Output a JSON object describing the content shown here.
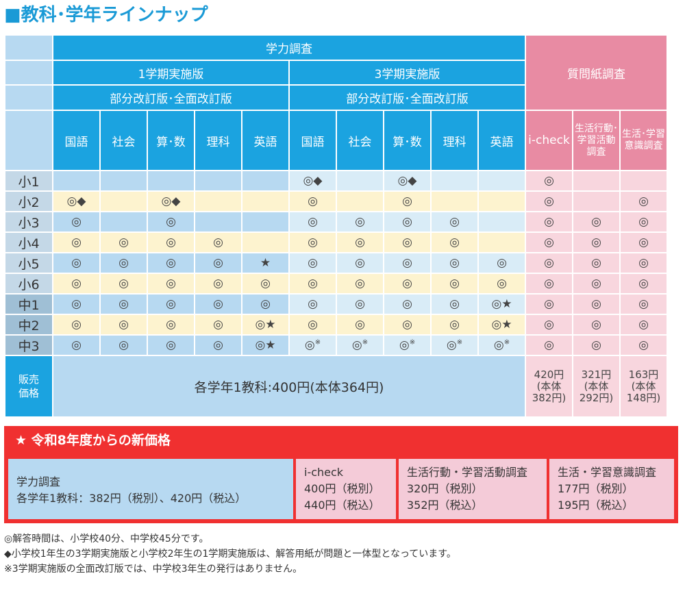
{
  "title": "■教科･学年ラインナップ",
  "header": {
    "gakuryoku": "学力調査",
    "term1": "1学期実施版",
    "term3": "3学期実施版",
    "revision1": "部分改訂版･全面改訂版",
    "revision3": "部分改訂版･全面改訂版",
    "questionnaire": "質問紙調査",
    "subjects": [
      "国語",
      "社会",
      "算･数",
      "理科",
      "英語",
      "国語",
      "社会",
      "算･数",
      "理科",
      "英語"
    ],
    "q_cols": [
      "i-check",
      "生活行動･\n学習活動\n調査",
      "生活･学習\n意識調査"
    ]
  },
  "rows": [
    {
      "grade": "小1",
      "cells": [
        "",
        "",
        "",
        "",
        "",
        "◎◆",
        "",
        "◎◆",
        "",
        "",
        "◎",
        "",
        ""
      ]
    },
    {
      "grade": "小2",
      "cells": [
        "◎◆",
        "",
        "◎◆",
        "",
        "",
        "◎",
        "",
        "◎",
        "",
        "",
        "◎",
        "",
        "◎"
      ]
    },
    {
      "grade": "小3",
      "cells": [
        "◎",
        "",
        "◎",
        "",
        "",
        "◎",
        "◎",
        "◎",
        "◎",
        "",
        "◎",
        "◎",
        "◎"
      ]
    },
    {
      "grade": "小4",
      "cells": [
        "◎",
        "◎",
        "◎",
        "◎",
        "",
        "◎",
        "◎",
        "◎",
        "◎",
        "",
        "◎",
        "◎",
        "◎"
      ]
    },
    {
      "grade": "小5",
      "cells": [
        "◎",
        "◎",
        "◎",
        "◎",
        "★",
        "◎",
        "◎",
        "◎",
        "◎",
        "◎",
        "◎",
        "◎",
        "◎"
      ]
    },
    {
      "grade": "小6",
      "cells": [
        "◎",
        "◎",
        "◎",
        "◎",
        "◎",
        "◎",
        "◎",
        "◎",
        "◎",
        "◎",
        "◎",
        "◎",
        "◎"
      ]
    },
    {
      "grade": "中1",
      "cells": [
        "◎",
        "◎",
        "◎",
        "◎",
        "◎",
        "◎",
        "◎",
        "◎",
        "◎",
        "◎★",
        "◎",
        "◎",
        "◎"
      ]
    },
    {
      "grade": "中2",
      "cells": [
        "◎",
        "◎",
        "◎",
        "◎",
        "◎★",
        "◎",
        "◎",
        "◎",
        "◎",
        "◎★",
        "◎",
        "◎",
        "◎"
      ]
    },
    {
      "grade": "中3",
      "cells": [
        "◎",
        "◎",
        "◎",
        "◎",
        "◎★",
        "◎",
        "◎",
        "◎",
        "◎",
        "◎",
        "◎",
        "◎",
        "◎"
      ],
      "note_mark": "※"
    }
  ],
  "sales": {
    "label": "販売\n価格",
    "gakuryoku_price": "各学年1教科:400円(本体364円)",
    "icheck_price": "420円\n(本体\n382円)",
    "seikatsu_price": "321円\n(本体\n292円)",
    "ishiki_price": "163円\n(本体\n148円)"
  },
  "new_price": {
    "title": "★ 令和8年度からの新価格",
    "gakuryoku": {
      "name": "学力調査",
      "line1": "各学年1教科：382円（税別）、420円（税込）"
    },
    "icheck": {
      "name": "i-check",
      "line1": "400円（税別）",
      "line2": "440円（税込）"
    },
    "seikatsu": {
      "name": "生活行動・学習活動調査",
      "line1": "320円（税別）",
      "line2": "352円（税込）"
    },
    "ishiki": {
      "name": "生活・学習意識調査",
      "line1": "177円（税別）",
      "line2": "195円（税込）"
    }
  },
  "notes": [
    "◎解答時間は、小学校40分、中学校45分です。",
    "◆小学校1年生の3学期実施版と小学校2年生の1学期実施版は、解答用紙が問題と一体型となっています。",
    "※3学期実施版の全面改訂版では、中学校3年生の発行はありません。"
  ]
}
